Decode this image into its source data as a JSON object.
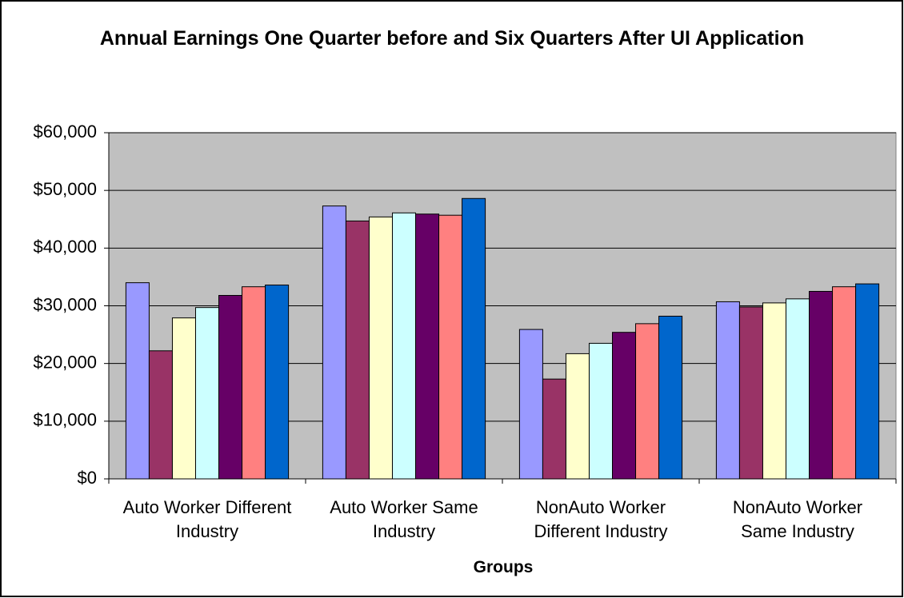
{
  "chart_data": {
    "type": "bar",
    "title": "Annual Earnings One Quarter before and Six Quarters After UI Application",
    "x_label": "Groups",
    "categories": [
      "Auto Worker Different Industry",
      "Auto Worker Same Industry",
      "NonAuto Worker Different Industry",
      "NonAuto Worker Same Industry"
    ],
    "series": [
      {
        "color": "#9999ff",
        "values": [
          34000,
          47300,
          25900,
          30700
        ]
      },
      {
        "color": "#993366",
        "values": [
          22200,
          44700,
          17300,
          29800
        ]
      },
      {
        "color": "#ffffcc",
        "values": [
          27900,
          45400,
          21700,
          30500
        ]
      },
      {
        "color": "#ccffff",
        "values": [
          29700,
          46100,
          23500,
          31200
        ]
      },
      {
        "color": "#660066",
        "values": [
          31800,
          45900,
          25400,
          32500
        ]
      },
      {
        "color": "#ff8080",
        "values": [
          33300,
          45700,
          26900,
          33300
        ]
      },
      {
        "color": "#0066cc",
        "values": [
          33600,
          48600,
          28200,
          33800
        ]
      }
    ],
    "ylim": [
      0,
      60000
    ],
    "yticks": [
      {
        "value": 0,
        "label": "$0"
      },
      {
        "value": 10000,
        "label": "$10,000"
      },
      {
        "value": 20000,
        "label": "$20,000"
      },
      {
        "value": 30000,
        "label": "$30,000"
      },
      {
        "value": 40000,
        "label": "$40,000"
      },
      {
        "value": 50000,
        "label": "$50,000"
      },
      {
        "value": 60000,
        "label": "$60,000"
      }
    ],
    "grid": true,
    "plot_background": "#c0c0c0"
  }
}
